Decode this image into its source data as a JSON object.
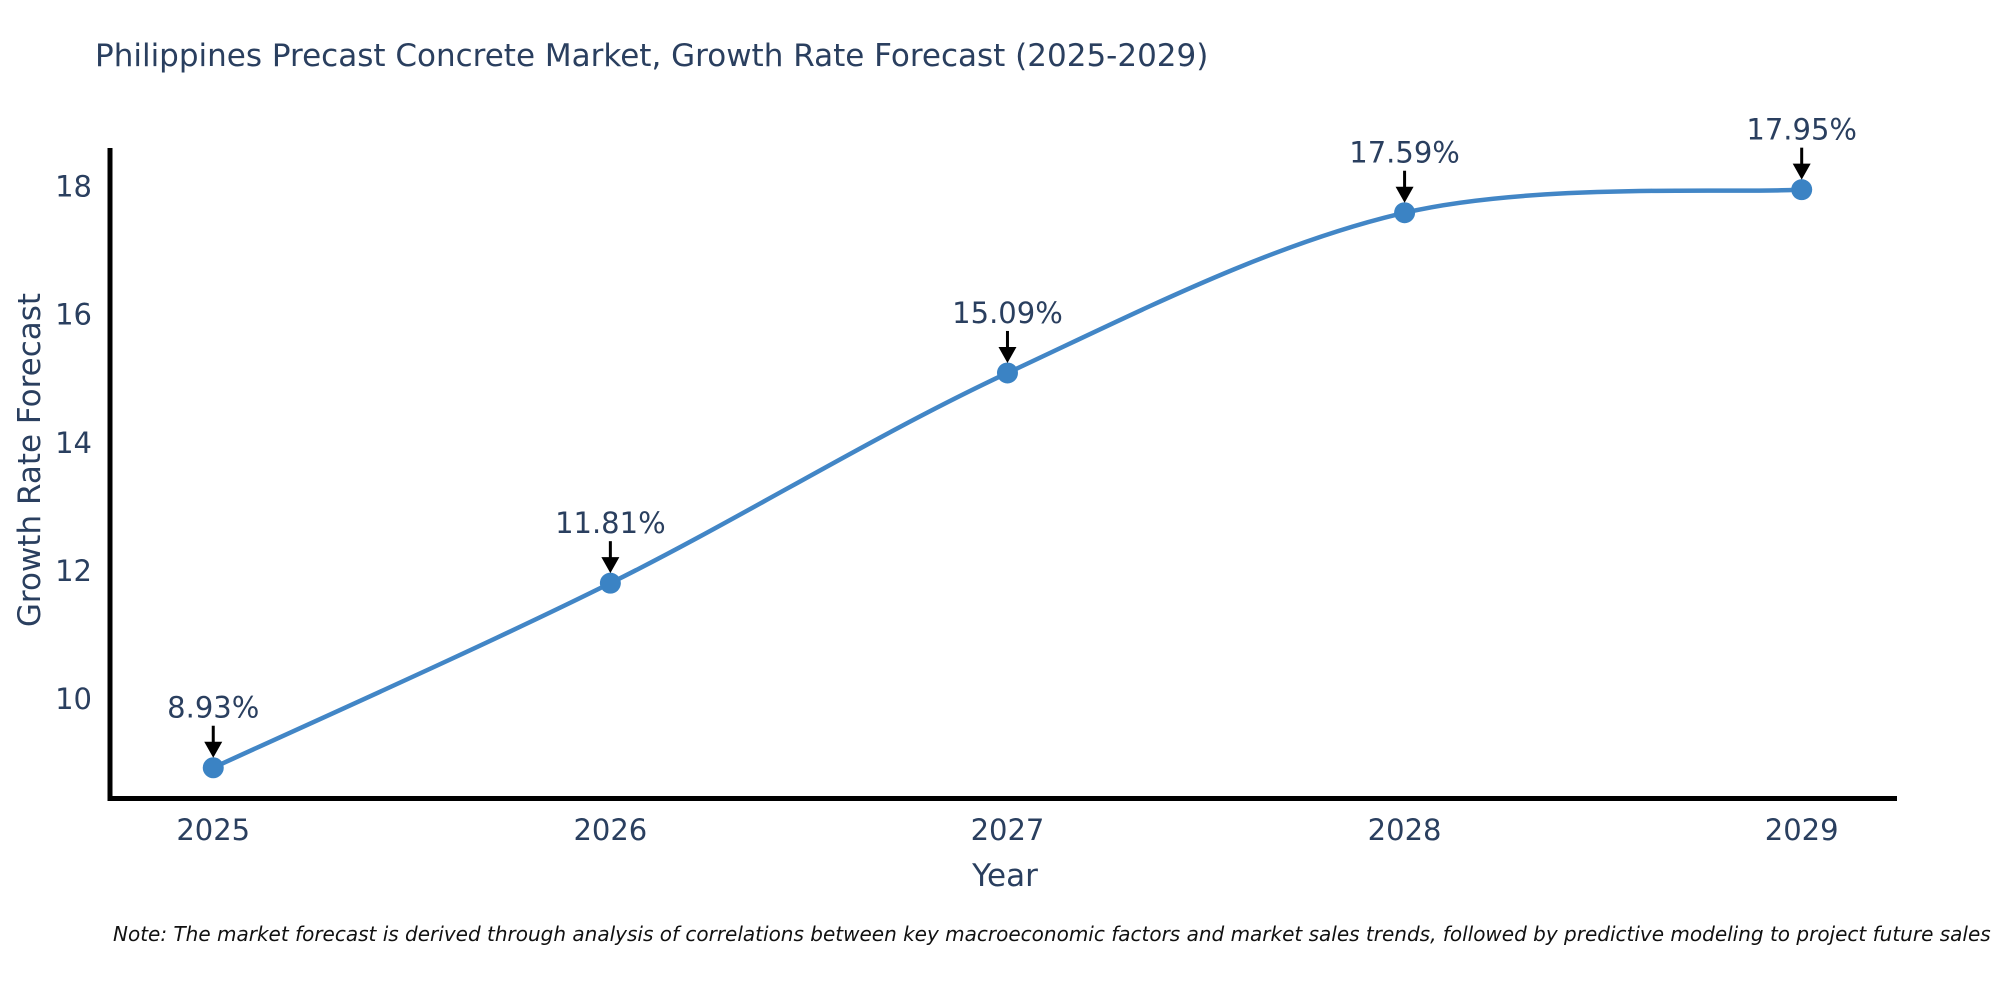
{
  "title": "Philippines Precast Concrete Market, Growth Rate Forecast (2025-2029)",
  "note": "Note: The market forecast is derived through analysis of correlations between key macroeconomic factors and market sales trends, followed by predictive modeling to project future sales",
  "colors": {
    "title_text": "#2a3f5f",
    "tick_text": "#2a3f5f",
    "annotation_text": "#2a3f5f",
    "line": "#4286c6",
    "marker": "#3b83c4",
    "axis_line": "#000000",
    "arrow": "#000000",
    "note_text": "#111111",
    "background": "#ffffff"
  },
  "chart_data": {
    "type": "line",
    "title": "Philippines Precast Concrete Market, Growth Rate Forecast (2025-2029)",
    "xlabel": "Year",
    "ylabel": "Growth Rate Forecast",
    "x": [
      2025,
      2026,
      2027,
      2028,
      2029
    ],
    "series": [
      {
        "name": "Growth Rate Forecast",
        "values": [
          8.93,
          11.81,
          15.09,
          17.59,
          17.95
        ]
      }
    ],
    "point_labels": [
      "8.93%",
      "11.81%",
      "15.09%",
      "17.59%",
      "17.95%"
    ],
    "xticks": [
      2025,
      2026,
      2027,
      2028,
      2029
    ],
    "yticks": [
      10,
      12,
      14,
      16,
      18
    ],
    "xlim": [
      2024.74,
      2029.24
    ],
    "ylim": [
      8.45,
      18.6
    ],
    "line_shape": "spline",
    "grid": false,
    "legend_position": "none",
    "annotations_have_arrows": true
  }
}
